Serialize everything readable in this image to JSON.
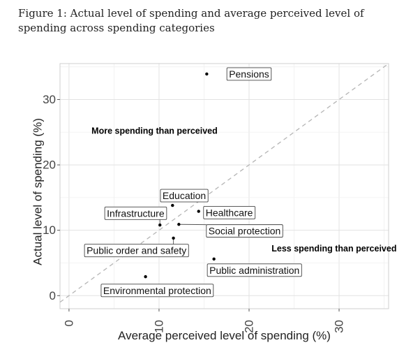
{
  "figure": {
    "caption": "Figure 1: Actual level of spending and average perceived level of spending across spending categories"
  },
  "chart_data": {
    "type": "scatter",
    "title": "",
    "xlabel": "Average perceived level of spending (%)",
    "ylabel": "Actual level of spending (%)",
    "xlim": [
      -1,
      35.5
    ],
    "ylim": [
      -2,
      35.5
    ],
    "xticks": [
      0,
      10,
      20,
      30
    ],
    "yticks": [
      0,
      10,
      20,
      30
    ],
    "grid": true,
    "reference_line": "y = x",
    "annotations": [
      {
        "text": "More spending than perceived",
        "x": 2.5,
        "y": 25.2
      },
      {
        "text": "Less spending than perceived",
        "x": 22.5,
        "y": 7.2
      }
    ],
    "points": [
      {
        "label": "Pensions",
        "x": 15.3,
        "y": 33.9,
        "lx": 20.0,
        "ly": 33.9,
        "line": false
      },
      {
        "label": "Education",
        "x": 11.5,
        "y": 13.8,
        "lx": 12.8,
        "ly": 15.3,
        "line": false
      },
      {
        "label": "Healthcare",
        "x": 14.4,
        "y": 12.9,
        "lx": 17.8,
        "ly": 12.7,
        "line": false
      },
      {
        "label": "Infrastructure",
        "x": 10.1,
        "y": 10.8,
        "lx": 7.4,
        "ly": 12.6,
        "line": true
      },
      {
        "label": "Social protection",
        "x": 12.2,
        "y": 10.9,
        "lx": 19.5,
        "ly": 9.9,
        "line": true
      },
      {
        "label": "Public order and safety",
        "x": 11.6,
        "y": 8.8,
        "lx": 7.5,
        "ly": 6.9,
        "line": true
      },
      {
        "label": "Public administration",
        "x": 16.1,
        "y": 5.6,
        "lx": 20.6,
        "ly": 3.9,
        "line": false
      },
      {
        "label": "Environmental protection",
        "x": 8.5,
        "y": 2.9,
        "lx": 9.8,
        "ly": 0.8,
        "line": false
      }
    ]
  }
}
